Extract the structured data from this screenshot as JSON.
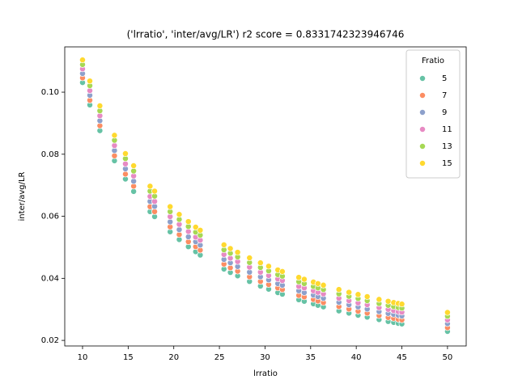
{
  "chart_data": {
    "type": "scatter",
    "title": "('lrratio', 'inter/avg/LR') r2 score = 0.8331742323946746",
    "x_label": "lrratio",
    "y_label": "inter/avg/LR",
    "legend_title": "Fratio",
    "legend_position": "upper right",
    "xlim": [
      8.05,
      52.05
    ],
    "ylim": [
      0.0182,
      0.1146
    ],
    "xticks": [
      10,
      15,
      20,
      25,
      30,
      35,
      40,
      45,
      50
    ],
    "yticks": [
      0.02,
      0.04,
      0.06,
      0.08,
      {
        "value": 0.1,
        "label": "0.10"
      }
    ],
    "x": [
      10,
      10.8,
      11.9,
      13.5,
      14.7,
      15.6,
      17.4,
      17.9,
      19.6,
      20.6,
      21.6,
      22.4,
      22.9,
      25.5,
      26.2,
      27,
      28.3,
      29.5,
      30.4,
      31.4,
      31.9,
      33.7,
      34.3,
      35.3,
      35.8,
      36.4,
      38.1,
      39.2,
      40.2,
      41.2,
      42.5,
      43.5,
      44.1,
      44.6,
      45,
      50
    ],
    "series": [
      {
        "name": "5",
        "color": "#66c2a5",
        "values": [
          0.1031,
          0.0959,
          0.0876,
          0.0779,
          0.072,
          0.068,
          0.0615,
          0.0599,
          0.055,
          0.0525,
          0.0502,
          0.0486,
          0.0475,
          0.043,
          0.0419,
          0.0408,
          0.039,
          0.0375,
          0.0365,
          0.0354,
          0.0349,
          0.0331,
          0.0326,
          0.0318,
          0.0313,
          0.0308,
          0.0295,
          0.0288,
          0.0281,
          0.0275,
          0.0267,
          0.0261,
          0.0258,
          0.0255,
          0.0253,
          0.0229
        ]
      },
      {
        "name": "7",
        "color": "#fc8d62",
        "values": [
          0.1046,
          0.0974,
          0.0892,
          0.0795,
          0.0736,
          0.0697,
          0.0631,
          0.0615,
          0.0566,
          0.0541,
          0.0518,
          0.0502,
          0.0491,
          0.0446,
          0.0434,
          0.0423,
          0.0405,
          0.039,
          0.038,
          0.0369,
          0.0364,
          0.0345,
          0.034,
          0.0332,
          0.0327,
          0.0322,
          0.0309,
          0.0301,
          0.0294,
          0.0288,
          0.028,
          0.0274,
          0.0271,
          0.0268,
          0.0266,
          0.0241
        ]
      },
      {
        "name": "9",
        "color": "#8da0cb",
        "values": [
          0.106,
          0.099,
          0.0908,
          0.0812,
          0.0753,
          0.0713,
          0.0648,
          0.0632,
          0.0582,
          0.0557,
          0.0534,
          0.0518,
          0.0507,
          0.0461,
          0.045,
          0.0438,
          0.042,
          0.0405,
          0.0395,
          0.0383,
          0.0378,
          0.036,
          0.0354,
          0.0346,
          0.0341,
          0.0336,
          0.0323,
          0.0315,
          0.0308,
          0.0301,
          0.0293,
          0.0287,
          0.0284,
          0.0281,
          0.0279,
          0.0254
        ]
      },
      {
        "name": "11",
        "color": "#e78ac3",
        "values": [
          0.1075,
          0.1005,
          0.0924,
          0.0828,
          0.0769,
          0.073,
          0.0664,
          0.0648,
          0.0599,
          0.0574,
          0.0551,
          0.0533,
          0.0523,
          0.0477,
          0.0465,
          0.0454,
          0.0436,
          0.042,
          0.0409,
          0.0398,
          0.0393,
          0.0374,
          0.0369,
          0.036,
          0.0355,
          0.035,
          0.0336,
          0.0328,
          0.0321,
          0.0315,
          0.0306,
          0.03,
          0.0296,
          0.0293,
          0.0291,
          0.0266
        ]
      },
      {
        "name": "13",
        "color": "#a6d854",
        "values": [
          0.1089,
          0.1021,
          0.094,
          0.0845,
          0.0786,
          0.0746,
          0.0681,
          0.0665,
          0.0615,
          0.059,
          0.0567,
          0.0549,
          0.0539,
          0.0492,
          0.0481,
          0.0469,
          0.0451,
          0.0435,
          0.0424,
          0.0412,
          0.0407,
          0.0389,
          0.0383,
          0.0374,
          0.0369,
          0.0364,
          0.035,
          0.0342,
          0.0335,
          0.0328,
          0.0319,
          0.0313,
          0.0309,
          0.0306,
          0.0304,
          0.0278
        ]
      },
      {
        "name": "15",
        "color": "#ffd92f",
        "values": [
          0.1104,
          0.1036,
          0.0956,
          0.0861,
          0.0802,
          0.0763,
          0.0697,
          0.0681,
          0.0631,
          0.0606,
          0.0583,
          0.0565,
          0.0555,
          0.0508,
          0.0496,
          0.0484,
          0.0466,
          0.045,
          0.0439,
          0.0427,
          0.0422,
          0.0403,
          0.0397,
          0.0388,
          0.0383,
          0.0378,
          0.0364,
          0.0355,
          0.0348,
          0.0341,
          0.0332,
          0.0326,
          0.0322,
          0.0319,
          0.0317,
          0.029
        ]
      }
    ]
  }
}
